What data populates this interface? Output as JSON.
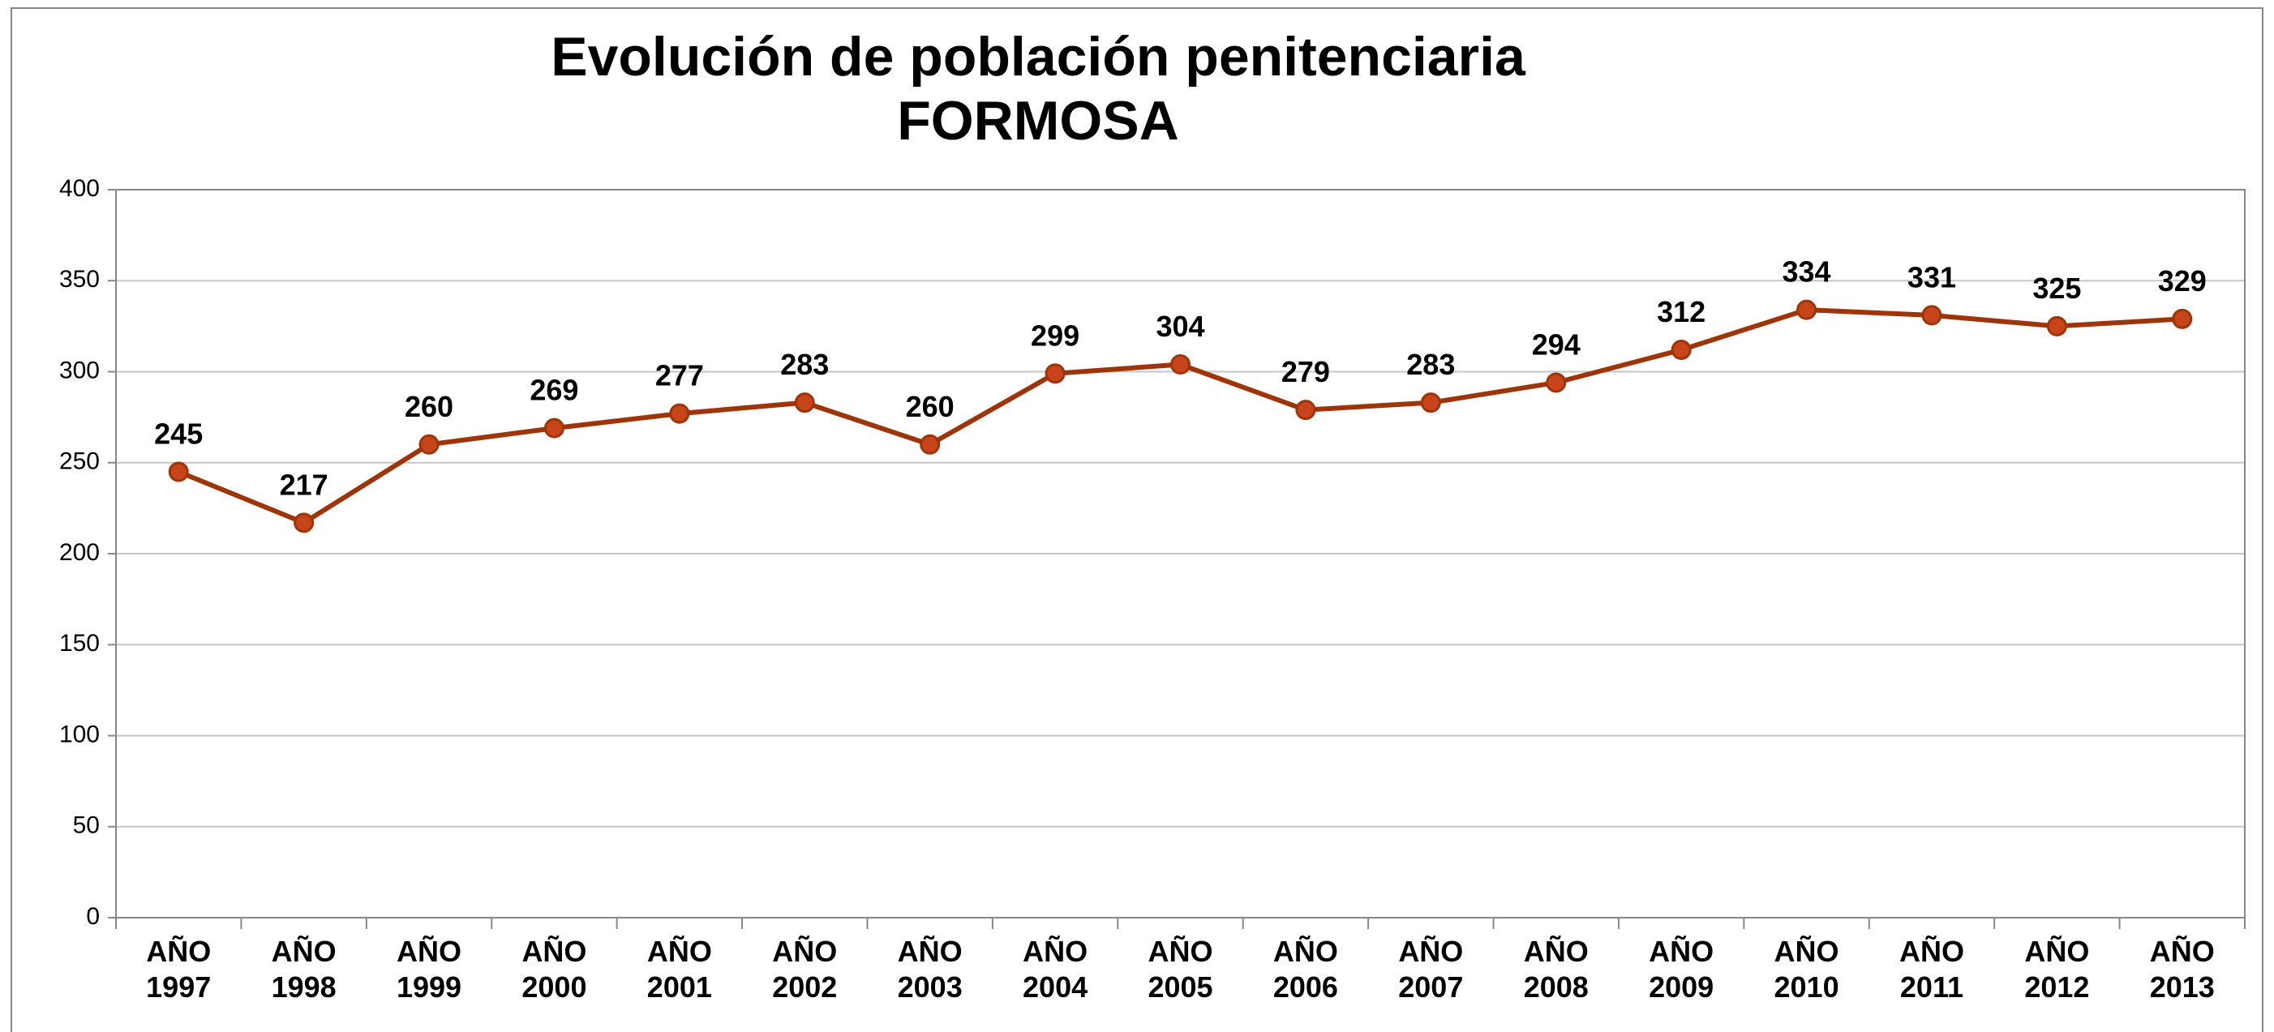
{
  "chart_data": {
    "type": "line",
    "title": [
      "Evolución de población penitenciaria",
      "FORMOSA"
    ],
    "categories": [
      "AÑO 1997",
      "AÑO 1998",
      "AÑO 1999",
      "AÑO 2000",
      "AÑO 2001",
      "AÑO 2002",
      "AÑO 2003",
      "AÑO 2004",
      "AÑO 2005",
      "AÑO 2006",
      "AÑO 2007",
      "AÑO 2008",
      "AÑO 2009",
      "AÑO 2010",
      "AÑO 2011",
      "AÑO 2012",
      "AÑO 2013"
    ],
    "series": [
      {
        "color": "#9e3508",
        "marker_color": "#c8441a",
        "values": [
          245,
          217,
          260,
          269,
          277,
          283,
          260,
          299,
          304,
          279,
          283,
          294,
          312,
          334,
          331,
          325,
          329
        ]
      }
    ],
    "ylim": [
      0,
      400
    ],
    "yticks": [
      0,
      50,
      100,
      150,
      200,
      250,
      300,
      350,
      400
    ],
    "grid": true
  }
}
